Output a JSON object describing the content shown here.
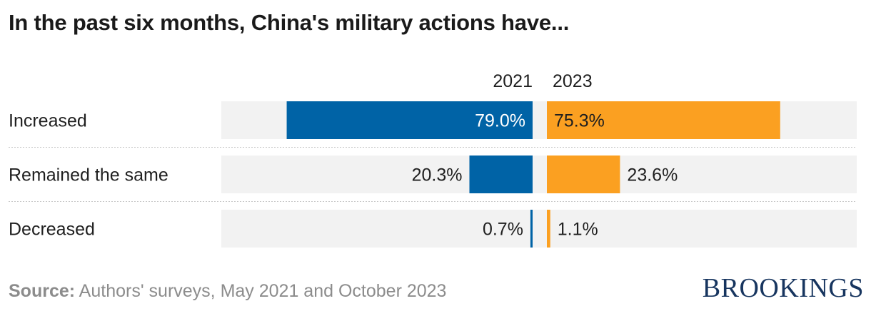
{
  "title": "In the past six months, China's military actions have...",
  "source_label": "Source:",
  "source_text": "Authors' surveys, May 2021 and October 2023",
  "brand": "BROOKINGS",
  "colors": {
    "y2021": "#0063a6",
    "y2023": "#fba021",
    "track": "#f2f2f2",
    "text": "#1f1f1f"
  },
  "chart_data": {
    "type": "bar",
    "orientation": "horizontal",
    "categories": [
      "Increased",
      "Remained the same",
      "Decreased"
    ],
    "series": [
      {
        "name": "2021",
        "values": [
          79.0,
          20.3,
          0.7
        ],
        "labels": [
          "79.0%",
          "20.3%",
          "0.7%"
        ]
      },
      {
        "name": "2023",
        "values": [
          75.3,
          23.6,
          1.1
        ],
        "labels": [
          "75.3%",
          "23.6%",
          "1.1%"
        ]
      }
    ],
    "unit": "%",
    "xlim": [
      0,
      100
    ]
  }
}
